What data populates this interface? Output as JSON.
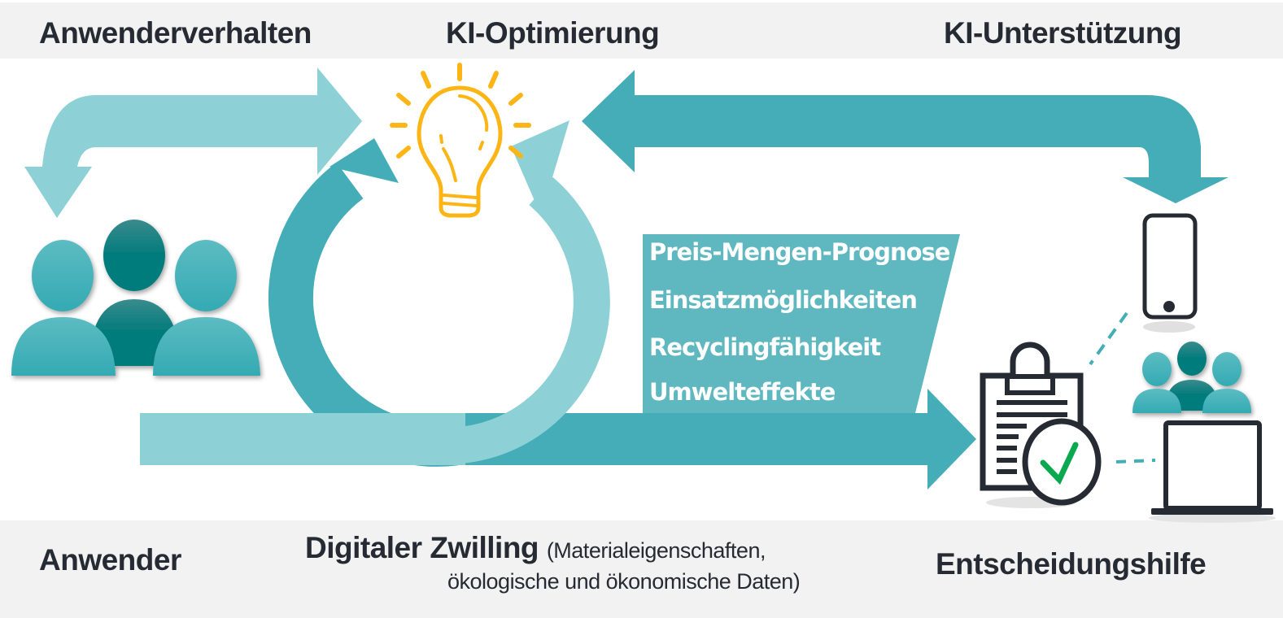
{
  "header": {
    "left": "Anwenderverhalten",
    "center": "KI-Optimierung",
    "right": "KI-Unterstützung"
  },
  "footer": {
    "left": "Anwender",
    "center_title": "Digitaler Zwilling",
    "center_sub_line1": "(Materialeigenschaften,",
    "center_sub_line2": "ökologische und ökonomische Daten)",
    "right": "Entscheidungshilfe"
  },
  "info_box": {
    "items": [
      "Preis-Mengen-Prognose",
      "Einsatzmöglichkeiten",
      "Recyclingfähigkeit",
      "Umwelteffekte"
    ]
  },
  "icons": [
    "users-group-icon",
    "lightbulb-icon",
    "smartphone-icon",
    "clipboard-check-icon",
    "users-small-icon",
    "laptop-icon"
  ],
  "colors": {
    "light_teal": "#8dd1d6",
    "teal": "#44adb7",
    "dark_teal": "#017b7c",
    "box": "#5fb8bf",
    "bulb": "#fdb515",
    "check": "#0aa84f",
    "text": "#262a33",
    "band": "#f2f2f2"
  }
}
